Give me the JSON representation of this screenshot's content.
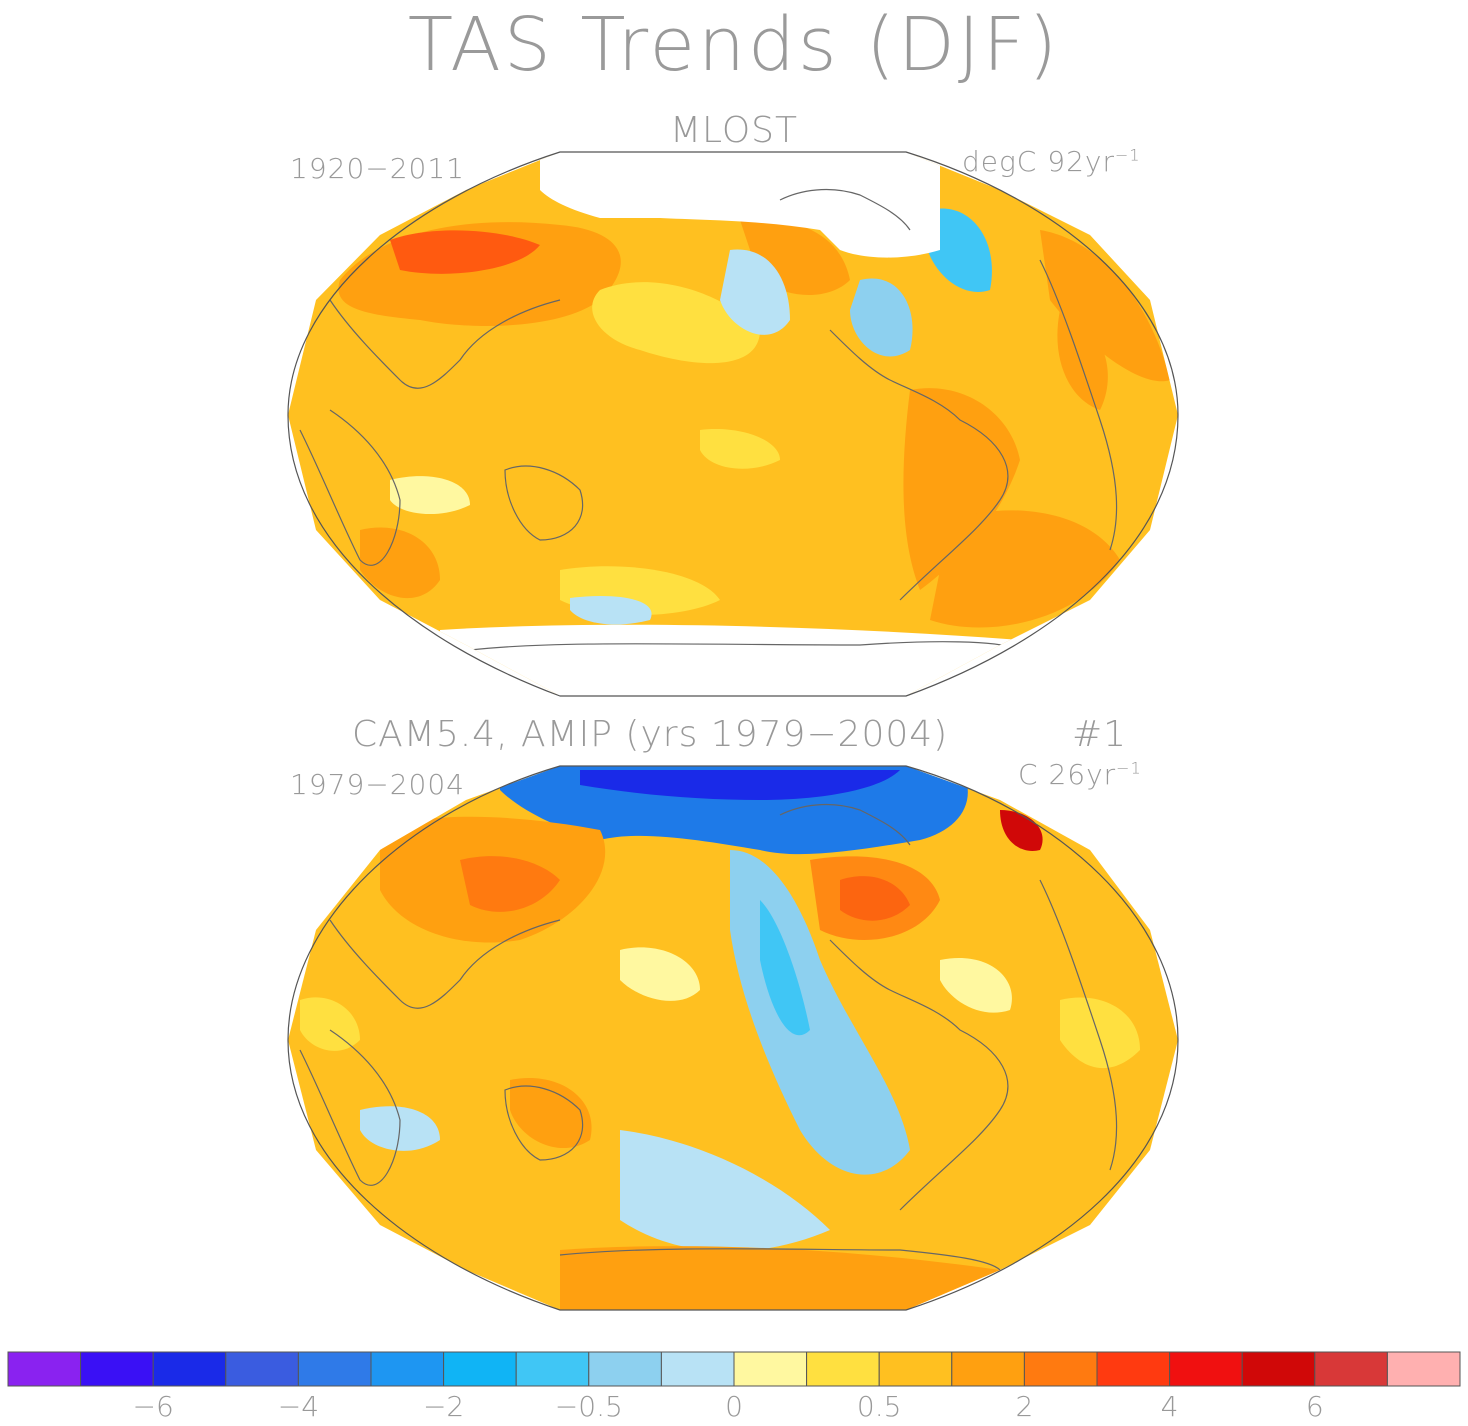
{
  "title": "TAS Trends (DJF)",
  "panels": [
    {
      "title": "MLOST",
      "left_label": "1920−2011",
      "right_label": "degC 92yr",
      "right_label_sup": "−1"
    },
    {
      "title": "CAM5.4, AMIP (yrs 1979−2004)",
      "title_tag": "#1",
      "left_label": "1979−2004",
      "right_label": "C 26yr",
      "right_label_sup": "−1"
    }
  ],
  "colorbar": {
    "colors": [
      "#8a22f0",
      "#3a10f5",
      "#1a2ae8",
      "#3a5ce0",
      "#2f7ae8",
      "#1e96f2",
      "#10b4f5",
      "#40c6f5",
      "#8dd0ef",
      "#b8e2f5",
      "#fff8a0",
      "#ffe040",
      "#ffc020",
      "#ffa010",
      "#ff7a10",
      "#ff3a10",
      "#f01010",
      "#d00808",
      "#d83838",
      "#ffb0b0"
    ],
    "labels": [
      "−6",
      "−4",
      "−2",
      "−0.5",
      "0",
      "0.5",
      "2",
      "4",
      "6"
    ]
  }
}
